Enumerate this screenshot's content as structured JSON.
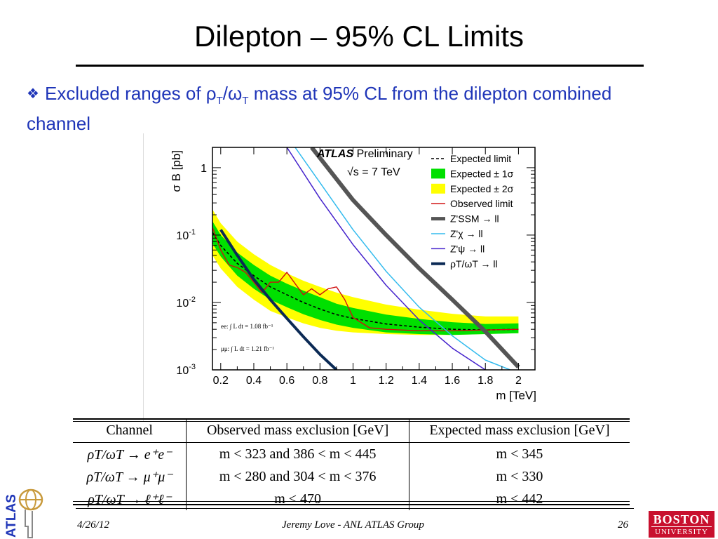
{
  "slide": {
    "title": "Dilepton – 95% CL Limits",
    "bullet_text": "Excluded ranges of ρT/ωT mass at 95% CL from the dilepton combined channel",
    "bullet_parts": {
      "pre": "Excluded ranges of ρ",
      "sub1": "T",
      "mid": "/ω",
      "sub2": "T",
      "post": " mass at 95% CL from the dilepton combined channel"
    }
  },
  "chart_data": {
    "type": "line",
    "title": "",
    "xlabel": "m [TeV]",
    "ylabel": "σ B [pb]",
    "xlim": [
      0.15,
      2.1
    ],
    "ylim": [
      0.001,
      2
    ],
    "yscale": "log",
    "x_ticks": [
      "0.2",
      "0.4",
      "0.6",
      "0.8",
      "1",
      "1.2",
      "1.4",
      "1.6",
      "1.8",
      "2"
    ],
    "y_ticks": [
      "10^-3",
      "10^-2",
      "10^-1",
      "1"
    ],
    "annotations": {
      "experiment": "ATLAS",
      "status": "Preliminary",
      "energy": "√s = 7 TeV",
      "lumi_ee": "ee: ∫ L dt = 1.08 fb⁻¹",
      "lumi_mumu": "μμ: ∫ L dt = 1.21 fb⁻¹"
    },
    "legend": [
      "Expected limit",
      "Expected ± 1σ",
      "Expected ± 2σ",
      "Observed limit",
      "Z'SSM → ll",
      "Z'χ → ll",
      "Z'ψ → ll",
      "ρT/ωT → ll"
    ],
    "legend_position": "top-right",
    "colors": {
      "band2": "#ffff00",
      "band1": "#00e000",
      "expected": "#000000",
      "observed": "#d01010",
      "zssm": "#555555",
      "zchi": "#33bbee",
      "zpsi": "#4422cc",
      "rho": "#0b2a55"
    },
    "series": [
      {
        "name": "Expected limit",
        "x": [
          0.15,
          0.2,
          0.3,
          0.4,
          0.5,
          0.6,
          0.7,
          0.8,
          0.9,
          1.0,
          1.2,
          1.4,
          1.6,
          1.8,
          2.0
        ],
        "y": [
          0.11,
          0.07,
          0.038,
          0.025,
          0.017,
          0.013,
          0.01,
          0.008,
          0.0066,
          0.0058,
          0.0048,
          0.0043,
          0.004,
          0.0039,
          0.004
        ]
      },
      {
        "name": "Expected ± 1σ",
        "x": [
          0.15,
          0.2,
          0.3,
          0.4,
          0.5,
          0.6,
          0.7,
          0.8,
          0.9,
          1.0,
          1.2,
          1.4,
          1.6,
          1.8,
          2.0
        ],
        "low": [
          0.075,
          0.048,
          0.025,
          0.016,
          0.011,
          0.0085,
          0.0067,
          0.0055,
          0.0047,
          0.0042,
          0.0036,
          0.0034,
          0.0033,
          0.0034,
          0.0035
        ],
        "high": [
          0.16,
          0.1,
          0.055,
          0.036,
          0.025,
          0.019,
          0.015,
          0.012,
          0.0096,
          0.0083,
          0.0066,
          0.0057,
          0.0051,
          0.0048,
          0.0049
        ]
      },
      {
        "name": "Expected ± 2σ",
        "x": [
          0.15,
          0.2,
          0.3,
          0.4,
          0.5,
          0.6,
          0.7,
          0.8,
          0.9,
          1.0,
          1.2,
          1.4,
          1.6,
          1.8,
          2.0
        ],
        "low": [
          0.05,
          0.032,
          0.017,
          0.011,
          0.0075,
          0.006,
          0.0049,
          0.0042,
          0.0038,
          0.0036,
          0.0034,
          0.0033,
          0.0033,
          0.0034,
          0.0035
        ],
        "high": [
          0.24,
          0.15,
          0.08,
          0.052,
          0.036,
          0.027,
          0.021,
          0.017,
          0.014,
          0.012,
          0.0093,
          0.0078,
          0.0068,
          0.0062,
          0.0062
        ]
      },
      {
        "name": "Observed limit",
        "x": [
          0.15,
          0.2,
          0.25,
          0.3,
          0.35,
          0.4,
          0.45,
          0.5,
          0.55,
          0.6,
          0.65,
          0.7,
          0.75,
          0.8,
          0.85,
          0.9,
          0.95,
          1.0,
          1.1,
          1.2,
          1.4,
          1.6,
          1.8,
          2.0
        ],
        "y": [
          0.13,
          0.06,
          0.036,
          0.033,
          0.028,
          0.02,
          0.014,
          0.02,
          0.02,
          0.028,
          0.019,
          0.013,
          0.016,
          0.013,
          0.016,
          0.017,
          0.011,
          0.006,
          0.0042,
          0.004,
          0.0038,
          0.0038,
          0.0039,
          0.004
        ]
      },
      {
        "name": "Z'SSM → ll",
        "x": [
          0.75,
          1.0,
          1.2,
          1.4,
          1.6,
          1.8,
          2.0
        ],
        "y": [
          2.0,
          0.33,
          0.1,
          0.032,
          0.011,
          0.0037,
          0.0011
        ]
      },
      {
        "name": "Z'χ → ll",
        "x": [
          0.65,
          0.8,
          1.0,
          1.2,
          1.4,
          1.6,
          1.8,
          1.95
        ],
        "y": [
          2.0,
          0.6,
          0.12,
          0.029,
          0.0085,
          0.0032,
          0.0014,
          0.001
        ]
      },
      {
        "name": "Z'ψ → ll",
        "x": [
          0.6,
          0.8,
          1.0,
          1.2,
          1.4,
          1.6,
          1.8
        ],
        "y": [
          2.0,
          0.35,
          0.072,
          0.018,
          0.0055,
          0.0021,
          0.001
        ]
      },
      {
        "name": "ρT/ωT → ll",
        "x": [
          0.2,
          0.3,
          0.4,
          0.5,
          0.6,
          0.7,
          0.8,
          0.9
        ],
        "y": [
          0.12,
          0.05,
          0.022,
          0.011,
          0.0058,
          0.0031,
          0.0017,
          0.001
        ]
      }
    ]
  },
  "table": {
    "headers": [
      "Channel",
      "Observed mass exclusion [GeV]",
      "Expected mass exclusion [GeV]"
    ],
    "rows": [
      [
        "ρT/ωT → e⁺e⁻",
        "m < 323 and 386 < m < 445",
        "m < 345"
      ],
      [
        "ρT/ωT → μ⁺μ⁻",
        "m < 280 and 304 < m < 376",
        "m < 330"
      ],
      [
        "ρT/ωT → ℓ⁺ℓ⁻",
        "m < 470",
        "m < 442"
      ]
    ]
  },
  "footer": {
    "date": "4/26/12",
    "author": "Jeremy Love - ANL ATLAS Group",
    "page": "26"
  },
  "logos": {
    "atlas": "ATLAS",
    "bu_line1": "BOSTON",
    "bu_line2": "UNIVERSITY"
  }
}
